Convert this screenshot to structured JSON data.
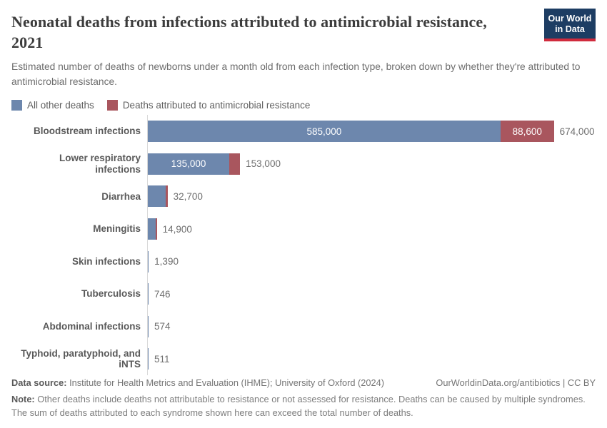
{
  "header": {
    "title_line1": "Neonatal deaths from infections attributed to antimicrobial resistance,",
    "title_line2": "2021",
    "subtitle": "Estimated number of deaths of newborns under a month old from each infection type, broken down by whether they're attributed to antimicrobial resistance.",
    "logo": {
      "line1": "Our World",
      "line2": "in Data",
      "bg_color": "#1d3d63",
      "stripe_color": "#d02b3d"
    }
  },
  "legend": [
    {
      "label": "All other deaths",
      "color": "#6d87ad"
    },
    {
      "label": "Deaths attributed to antimicrobial resistance",
      "color": "#a9565e"
    }
  ],
  "chart_data": {
    "type": "bar",
    "orientation": "horizontal",
    "stacked": true,
    "title": "Neonatal deaths from infections attributed to antimicrobial resistance, 2021",
    "xlim": [
      0,
      674000
    ],
    "grid": false,
    "legend_position": "top",
    "categories": [
      "Bloodstream infections",
      "Lower respiratory infections",
      "Diarrhea",
      "Meningitis",
      "Skin infections",
      "Tuberculosis",
      "Abdominal infections",
      "Typhoid, paratyphoid, and iNTS"
    ],
    "series": [
      {
        "name": "All other deaths",
        "values": [
          585000,
          135000,
          30200,
          13200,
          1390,
          746,
          574,
          511
        ]
      },
      {
        "name": "Deaths attributed to antimicrobial resistance",
        "values": [
          88600,
          18000,
          2500,
          1700,
          0,
          0,
          0,
          0
        ]
      }
    ],
    "totals": [
      674000,
      153000,
      32700,
      14900,
      1390,
      746,
      574,
      511
    ],
    "max_value": 674000,
    "colors": {
      "other": "#6d87ad",
      "amr": "#a9565e"
    },
    "rows": [
      {
        "category": "Bloodstream infections",
        "other": 585000,
        "amr": 88600,
        "other_label": "585,000",
        "amr_label": "88,600",
        "total_label": "674,000"
      },
      {
        "category": "Lower respiratory infections",
        "other": 135000,
        "amr": 18000,
        "other_label": "135,000",
        "amr_label": "",
        "total_label": "153,000"
      },
      {
        "category": "Diarrhea",
        "other": 30200,
        "amr": 2500,
        "other_label": "",
        "amr_label": "",
        "total_label": "32,700"
      },
      {
        "category": "Meningitis",
        "other": 13200,
        "amr": 1700,
        "other_label": "",
        "amr_label": "",
        "total_label": "14,900"
      },
      {
        "category": "Skin infections",
        "other": 1390,
        "amr": 0,
        "other_label": "",
        "amr_label": "",
        "total_label": "1,390"
      },
      {
        "category": "Tuberculosis",
        "other": 746,
        "amr": 0,
        "other_label": "",
        "amr_label": "",
        "total_label": "746"
      },
      {
        "category": "Abdominal infections",
        "other": 574,
        "amr": 0,
        "other_label": "",
        "amr_label": "",
        "total_label": "574"
      },
      {
        "category": "Typhoid, paratyphoid, and iNTS",
        "other": 511,
        "amr": 0,
        "other_label": "",
        "amr_label": "",
        "total_label": "511"
      }
    ]
  },
  "footer": {
    "datasource_label": "Data source:",
    "datasource_text": " Institute for Health Metrics and Evaluation (IHME); University of Oxford (2024)",
    "rights_text": "OurWorldinData.org/antibiotics | CC BY",
    "note_label": "Note:",
    "note_text": " Other deaths include deaths not attributable to resistance or not assessed for resistance. Deaths can be caused by multiple syndromes. The sum of deaths attributed to each syndrome shown here can exceed the total number of deaths."
  }
}
